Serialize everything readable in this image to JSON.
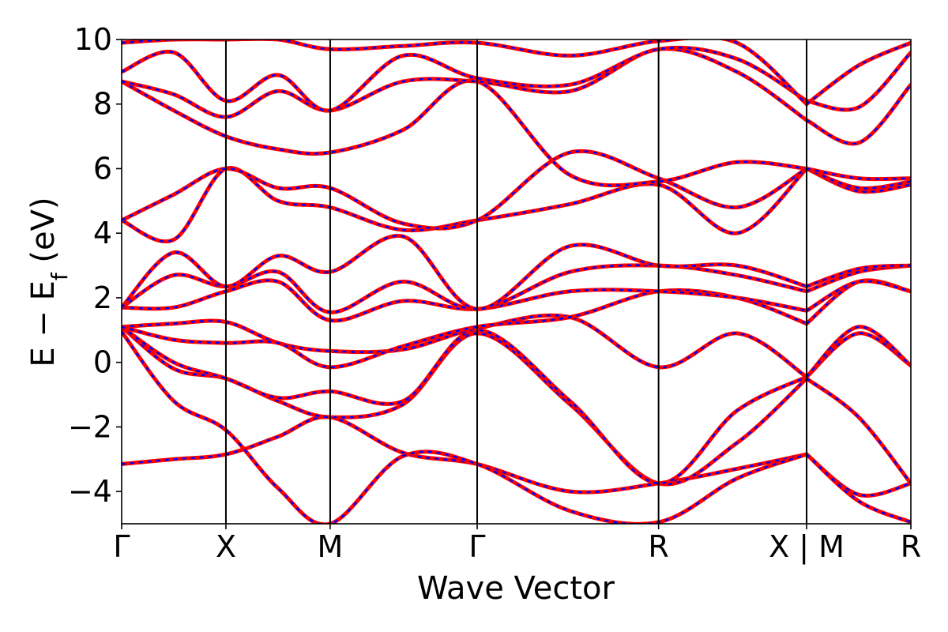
{
  "chart_data": {
    "type": "line",
    "title": "",
    "xlabel": "Wave Vector",
    "ylabel_parts": {
      "main": "E − E",
      "sub": "f",
      "unit": " (eV)"
    },
    "ylim": [
      -5,
      10
    ],
    "xlim": [
      0,
      7.57
    ],
    "yticks": [
      -4,
      -2,
      0,
      2,
      4,
      6,
      8,
      10
    ],
    "ytick_labels": [
      "−4",
      "−2",
      "0",
      "2",
      "4",
      "6",
      "8",
      "10"
    ],
    "kpoint_positions": [
      0,
      1.0,
      2.0,
      3.41,
      5.15,
      6.57,
      7.57
    ],
    "kpoint_labels": [
      "Γ",
      "X",
      "M",
      "Γ",
      "R",
      "X | M",
      "R"
    ],
    "segment_breaks": [
      6.57
    ],
    "legend": "none",
    "series": [
      {
        "style": "red solid (DFT)",
        "color": "#ff0000"
      },
      {
        "style": "blue dashed (fit)",
        "color": "#0000ff"
      }
    ],
    "bands": [
      {
        "x": [
          0,
          0.5,
          1.0,
          1.5,
          2.0,
          2.7,
          3.41,
          4.3,
          5.15,
          5.9,
          6.57,
          7.07,
          7.57
        ],
        "y": [
          -3.15,
          -3.0,
          -2.85,
          -2.3,
          -1.7,
          -2.8,
          -3.15,
          -4.0,
          -3.75,
          -3.3,
          -2.85,
          -4.1,
          -3.75
        ]
      },
      {
        "x": [
          0,
          0.5,
          1.0,
          1.5,
          2.0,
          2.7,
          3.41,
          4.3,
          5.15,
          5.9,
          6.57,
          7.07,
          7.57
        ],
        "y": [
          0.95,
          -1.2,
          -2.1,
          -3.9,
          -5.0,
          -2.9,
          -3.15,
          -4.6,
          -4.95,
          -3.6,
          -2.85,
          -4.3,
          -4.95
        ]
      },
      {
        "x": [
          0,
          0.5,
          1.0,
          1.5,
          2.0,
          2.7,
          3.41,
          4.3,
          5.15,
          5.9,
          6.57,
          7.07,
          7.57
        ],
        "y": [
          1.1,
          -0.2,
          -0.5,
          -1.2,
          -1.7,
          -1.3,
          0.9,
          -1.3,
          -3.75,
          -2.5,
          -0.5,
          -1.7,
          -3.75
        ]
      },
      {
        "x": [
          0,
          0.5,
          1.0,
          1.5,
          2.0,
          2.7,
          3.41,
          4.3,
          5.15,
          5.9,
          6.57,
          7.07,
          7.57
        ],
        "y": [
          1.1,
          0.0,
          -0.5,
          -1.1,
          -0.9,
          -1.2,
          1.0,
          -1.2,
          -3.75,
          -1.5,
          -0.45,
          0.9,
          -0.1
        ]
      },
      {
        "x": [
          0,
          0.5,
          1.0,
          1.5,
          2.0,
          2.7,
          3.41,
          4.3,
          5.15,
          5.9,
          6.57,
          7.07,
          7.57
        ],
        "y": [
          1.1,
          1.2,
          1.25,
          0.6,
          0.35,
          0.4,
          1.05,
          1.4,
          -0.15,
          0.9,
          -0.45,
          1.1,
          -0.1
        ]
      },
      {
        "x": [
          0,
          0.5,
          1.0,
          1.5,
          2.0,
          2.7,
          3.41,
          4.3,
          5.15,
          5.9,
          6.57,
          7.07,
          7.57
        ],
        "y": [
          1.1,
          0.7,
          0.6,
          0.6,
          -0.15,
          0.5,
          1.1,
          1.4,
          2.2,
          2.0,
          1.2,
          2.5,
          2.2
        ]
      },
      {
        "x": [
          0,
          0.5,
          1.0,
          1.5,
          2.0,
          2.7,
          3.41,
          4.3,
          5.15,
          5.9,
          6.57,
          7.07,
          7.57
        ],
        "y": [
          1.7,
          1.7,
          2.2,
          2.5,
          1.3,
          1.9,
          1.65,
          2.2,
          2.2,
          2.0,
          1.6,
          2.5,
          2.2
        ]
      },
      {
        "x": [
          0,
          0.5,
          1.0,
          1.5,
          2.0,
          2.7,
          3.41,
          4.3,
          5.15,
          5.9,
          6.57,
          7.07,
          7.57
        ],
        "y": [
          1.7,
          2.7,
          2.35,
          2.8,
          1.55,
          2.5,
          1.65,
          2.8,
          3.0,
          2.7,
          2.2,
          2.8,
          3.0
        ]
      },
      {
        "x": [
          0,
          0.5,
          1.0,
          1.5,
          2.0,
          2.7,
          3.41,
          4.3,
          5.15,
          5.9,
          6.57,
          7.07,
          7.57
        ],
        "y": [
          1.7,
          3.4,
          2.35,
          3.3,
          2.8,
          3.9,
          1.65,
          3.6,
          3.0,
          3.0,
          2.35,
          2.9,
          3.0
        ]
      },
      {
        "x": [
          0,
          0.5,
          1.0,
          1.5,
          2.0,
          2.7,
          3.41,
          4.3,
          5.15,
          5.9,
          6.57,
          7.07,
          7.57
        ],
        "y": [
          4.4,
          3.8,
          6.0,
          5.0,
          4.8,
          4.1,
          4.4,
          4.9,
          5.5,
          4.0,
          6.0,
          5.3,
          5.5
        ]
      },
      {
        "x": [
          0,
          0.5,
          1.0,
          1.5,
          2.0,
          2.7,
          3.41,
          4.3,
          5.15,
          5.9,
          6.57,
          7.07,
          7.57
        ],
        "y": [
          4.4,
          5.2,
          6.0,
          5.4,
          5.4,
          4.3,
          4.4,
          6.5,
          5.7,
          4.8,
          6.0,
          5.4,
          5.6
        ]
      },
      {
        "x": [
          0,
          0.5,
          1.0,
          1.5,
          2.0,
          2.7,
          3.41,
          4.3,
          5.15,
          5.9,
          6.57,
          7.07,
          7.57
        ],
        "y": [
          8.7,
          7.8,
          7.0,
          6.6,
          6.5,
          7.2,
          8.7,
          5.8,
          5.6,
          6.2,
          6.0,
          5.7,
          5.7
        ]
      },
      {
        "x": [
          0,
          0.5,
          1.0,
          1.5,
          2.0,
          2.7,
          3.41,
          4.3,
          5.15,
          5.9,
          6.57,
          7.07,
          7.57
        ],
        "y": [
          8.7,
          8.3,
          7.6,
          8.4,
          7.8,
          8.7,
          8.7,
          8.4,
          9.7,
          9.0,
          7.5,
          6.8,
          8.6
        ]
      },
      {
        "x": [
          0,
          0.5,
          1.0,
          1.5,
          2.0,
          2.7,
          3.41,
          4.3,
          5.15,
          5.9,
          6.57,
          7.07,
          7.57
        ],
        "y": [
          9.0,
          9.6,
          8.1,
          8.9,
          7.8,
          9.5,
          8.8,
          8.6,
          9.7,
          9.4,
          8.1,
          7.9,
          9.6
        ]
      },
      {
        "x": [
          0,
          0.5,
          1.0,
          1.5,
          2.0,
          2.7,
          3.41,
          4.3,
          5.15,
          5.9,
          6.57,
          7.07,
          7.57
        ],
        "y": [
          9.9,
          10.0,
          10.0,
          10.0,
          9.7,
          9.8,
          9.9,
          9.5,
          9.95,
          9.9,
          8.0,
          9.2,
          9.9
        ]
      }
    ]
  }
}
